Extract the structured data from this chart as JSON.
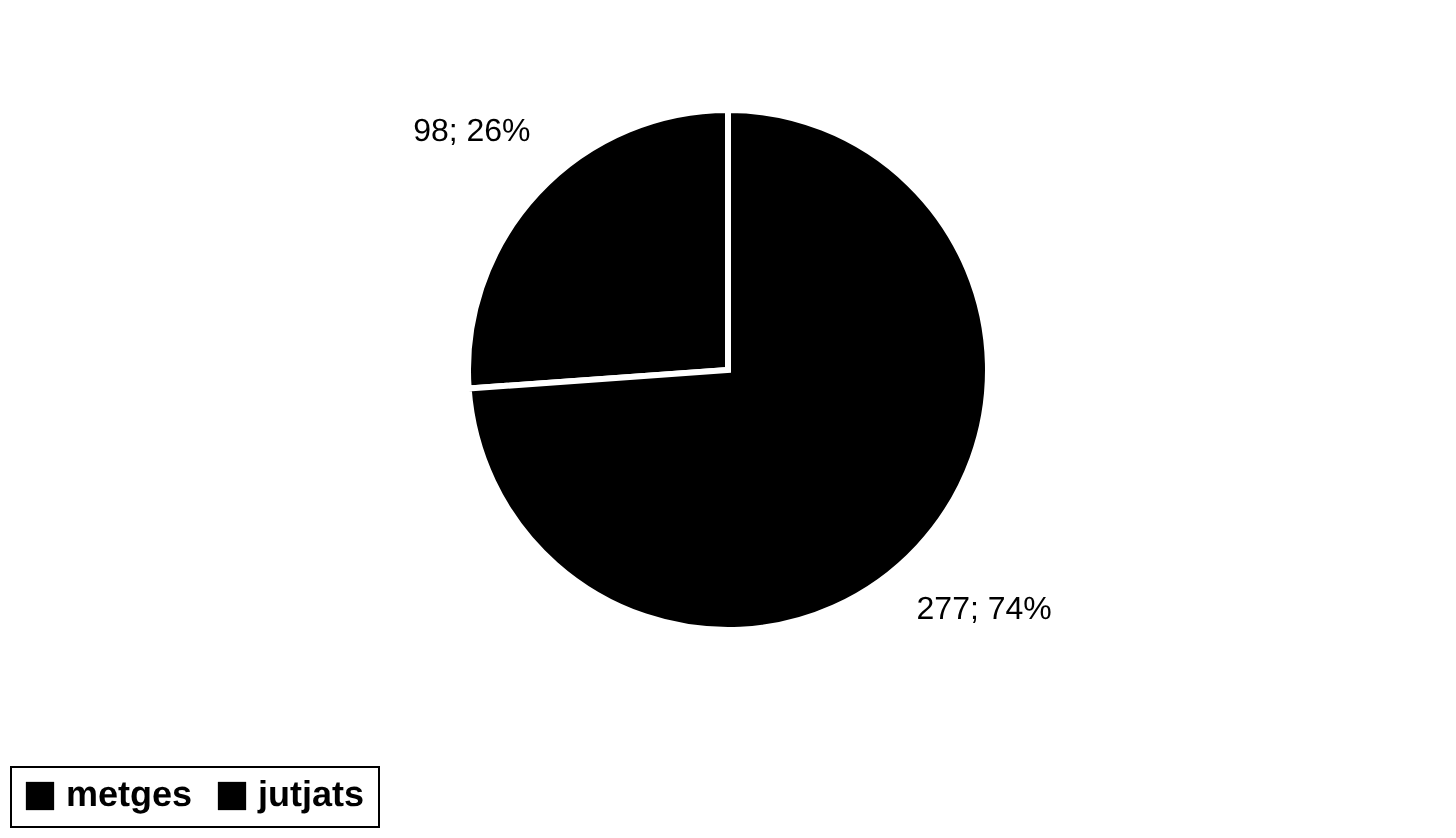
{
  "chart_data": {
    "type": "pie",
    "categories": [
      "metges",
      "jutjats"
    ],
    "values": [
      98,
      277
    ],
    "colors": [
      "#000000",
      "#000000"
    ],
    "value_labels": [
      "98; 26%",
      "277; 74%"
    ],
    "legend": "bottom"
  }
}
